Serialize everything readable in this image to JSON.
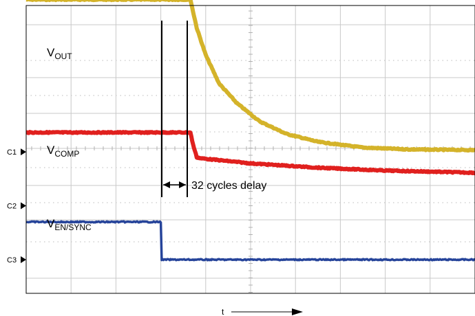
{
  "chart_data": {
    "type": "line",
    "title": "",
    "xlabel": "t",
    "ylabel": "",
    "divisions": {
      "x": 10,
      "y": 8
    },
    "grid": true,
    "colors": {
      "vout": "#d4b32a",
      "vcomp": "#e0201e",
      "ven": "#26449a",
      "grid": "#c8c8c8",
      "marker": "#000000"
    },
    "channel_markers": [
      {
        "label": "C1",
        "level_div": 3.0
      },
      {
        "label": "C2",
        "level_div": 1.5
      },
      {
        "label": "C3",
        "level_div": 0.0
      }
    ],
    "series": [
      {
        "id": "vout",
        "label_main": "V",
        "label_sub": "OUT",
        "points": [
          [
            0.0,
            7.24
          ],
          [
            3.66,
            7.24
          ],
          [
            3.8,
            6.45
          ],
          [
            4.0,
            5.7
          ],
          [
            4.3,
            4.9
          ],
          [
            4.7,
            4.35
          ],
          [
            5.2,
            3.85
          ],
          [
            5.8,
            3.5
          ],
          [
            6.5,
            3.28
          ],
          [
            7.5,
            3.12
          ],
          [
            8.5,
            3.07
          ],
          [
            10.0,
            3.05
          ]
        ]
      },
      {
        "id": "vcomp",
        "label_main": "V",
        "label_sub": "COMP",
        "points": [
          [
            0.0,
            3.54
          ],
          [
            3.66,
            3.54
          ],
          [
            3.72,
            3.2
          ],
          [
            3.8,
            2.85
          ],
          [
            3.9,
            2.82
          ],
          [
            5.0,
            2.68
          ],
          [
            6.5,
            2.56
          ],
          [
            8.0,
            2.48
          ],
          [
            10.0,
            2.42
          ]
        ]
      },
      {
        "id": "ven",
        "label_main": "V",
        "label_sub": "EN/SYNC",
        "points": [
          [
            0.0,
            1.05
          ],
          [
            3.0,
            1.05
          ],
          [
            3.02,
            0.0
          ],
          [
            10.0,
            0.0
          ]
        ]
      }
    ],
    "annotations": [
      {
        "id": "delay",
        "text": "32 cycles delay",
        "x_start": 3.0,
        "x_end": 3.6
      }
    ]
  }
}
